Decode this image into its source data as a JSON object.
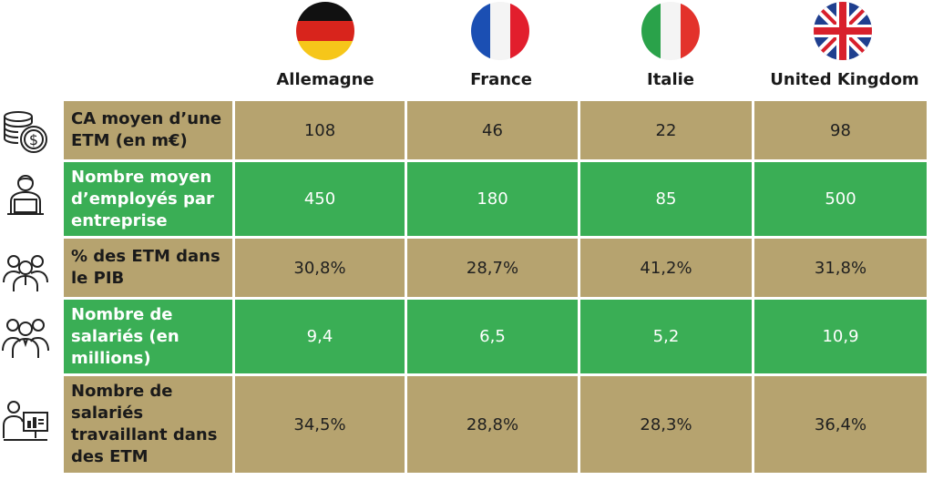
{
  "colors": {
    "gold": "#b6a36f",
    "green": "#3aae55",
    "separator": "#ffffff"
  },
  "countries": [
    {
      "name": "Allemagne",
      "flag": "germany-flag"
    },
    {
      "name": "France",
      "flag": "france-flag"
    },
    {
      "name": "Italie",
      "flag": "italy-flag"
    },
    {
      "name": "United Kingdom",
      "flag": "uk-flag"
    }
  ],
  "rows": [
    {
      "label": "CA moyen d’une ETM (en m€)",
      "values": [
        "108",
        "46",
        "22",
        "98"
      ],
      "icon": "coins-dollar-icon",
      "color": "gold"
    },
    {
      "label": "Nombre moyen d’employés par entreprise",
      "values": [
        "450",
        "180",
        "85",
        "500"
      ],
      "icon": "employee-laptop-icon",
      "color": "green"
    },
    {
      "label": "% des ETM dans le PIB",
      "values": [
        "30,8%",
        "28,7%",
        "41,2%",
        "31,8%"
      ],
      "icon": "group-people-icon",
      "color": "gold"
    },
    {
      "label": "Nombre de salariés (en millions)",
      "values": [
        "9,4",
        "6,5",
        "5,2",
        "10,9"
      ],
      "icon": "team-people-icon",
      "color": "green"
    },
    {
      "label": "Nombre de salariés travaillant dans des ETM",
      "values": [
        "34,5%",
        "28,8%",
        "28,3%",
        "36,4%"
      ],
      "icon": "presenter-board-icon",
      "color": "gold"
    }
  ]
}
